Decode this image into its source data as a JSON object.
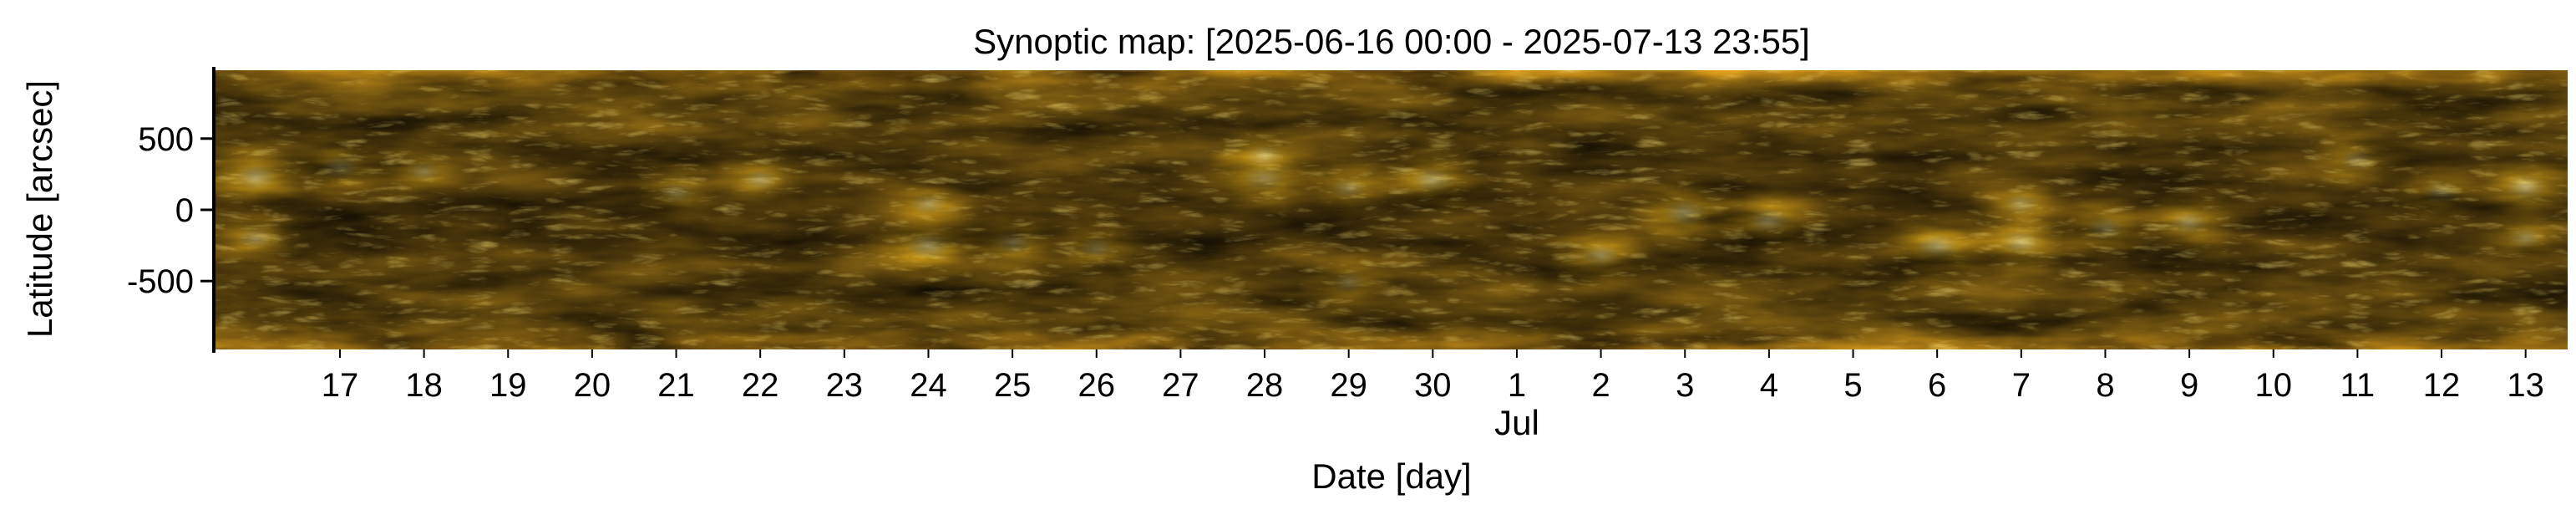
{
  "chart_data": {
    "type": "heatmap",
    "title": "Synoptic map: [2025-06-16 00:00 - 2025-07-13 23:55]",
    "xlabel": "Date [day]",
    "ylabel": "Latitude [arcsec]",
    "x_start": "2025-06-16 00:00",
    "x_end": "2025-07-13 23:55",
    "xlim": [
      "2025-06-16",
      "2025-07-14"
    ],
    "ylim": [
      -980,
      980
    ],
    "yticks": [
      500,
      0,
      -500
    ],
    "ytick_labels": [
      "500",
      "0",
      "-500"
    ],
    "xticks": [
      "2025-06-17",
      "2025-06-18",
      "2025-06-19",
      "2025-06-20",
      "2025-06-21",
      "2025-06-22",
      "2025-06-23",
      "2025-06-24",
      "2025-06-25",
      "2025-06-26",
      "2025-06-27",
      "2025-06-28",
      "2025-06-29",
      "2025-06-30",
      "2025-07-01",
      "2025-07-02",
      "2025-07-03",
      "2025-07-04",
      "2025-07-05",
      "2025-07-06",
      "2025-07-07",
      "2025-07-08",
      "2025-07-09",
      "2025-07-10",
      "2025-07-11",
      "2025-07-12",
      "2025-07-13"
    ],
    "xtick_labels": [
      "17",
      "18",
      "19",
      "20",
      "21",
      "22",
      "23",
      "24",
      "25",
      "26",
      "27",
      "28",
      "29",
      "30",
      "1",
      "2",
      "3",
      "4",
      "5",
      "6",
      "7",
      "8",
      "9",
      "10",
      "11",
      "12",
      "13"
    ],
    "month_label": "Jul",
    "month_label_date": "2025-07-01",
    "colormap": {
      "low": "#1a1203",
      "mid": "#7a5a10",
      "high": "#ffd23a"
    },
    "grid": false,
    "bright_regions": [
      {
        "date": "2025-06-16",
        "lat": 230,
        "strength": 0.85
      },
      {
        "date": "2025-06-17",
        "lat": 300,
        "strength": 0.75
      },
      {
        "date": "2025-06-16",
        "lat": -200,
        "strength": 0.6
      },
      {
        "date": "2025-06-18",
        "lat": 270,
        "strength": 0.55
      },
      {
        "date": "2025-06-21",
        "lat": 120,
        "strength": 0.6
      },
      {
        "date": "2025-06-22",
        "lat": 210,
        "strength": 0.6
      },
      {
        "date": "2025-06-24",
        "lat": 40,
        "strength": 0.6
      },
      {
        "date": "2025-06-24",
        "lat": -250,
        "strength": 0.9
      },
      {
        "date": "2025-06-25",
        "lat": -230,
        "strength": 0.7
      },
      {
        "date": "2025-06-26",
        "lat": -270,
        "strength": 0.6
      },
      {
        "date": "2025-06-28",
        "lat": 230,
        "strength": 0.95
      },
      {
        "date": "2025-06-28",
        "lat": 380,
        "strength": 0.7
      },
      {
        "date": "2025-06-29",
        "lat": 150,
        "strength": 0.6
      },
      {
        "date": "2025-06-30",
        "lat": 210,
        "strength": 0.85
      },
      {
        "date": "2025-06-29",
        "lat": -510,
        "strength": 0.6
      },
      {
        "date": "2025-07-02",
        "lat": -320,
        "strength": 0.7
      },
      {
        "date": "2025-07-03",
        "lat": -20,
        "strength": 0.9
      },
      {
        "date": "2025-07-04",
        "lat": -80,
        "strength": 0.85
      },
      {
        "date": "2025-07-06",
        "lat": -260,
        "strength": 0.9
      },
      {
        "date": "2025-07-07",
        "lat": -230,
        "strength": 0.8
      },
      {
        "date": "2025-07-07",
        "lat": 40,
        "strength": 0.6
      },
      {
        "date": "2025-07-08",
        "lat": -130,
        "strength": 0.7
      },
      {
        "date": "2025-07-09",
        "lat": -90,
        "strength": 0.7
      },
      {
        "date": "2025-07-11",
        "lat": 350,
        "strength": 0.6
      },
      {
        "date": "2025-07-12",
        "lat": 120,
        "strength": 0.7
      },
      {
        "date": "2025-07-13",
        "lat": 160,
        "strength": 0.85
      },
      {
        "date": "2025-07-13",
        "lat": -200,
        "strength": 0.6
      }
    ]
  }
}
